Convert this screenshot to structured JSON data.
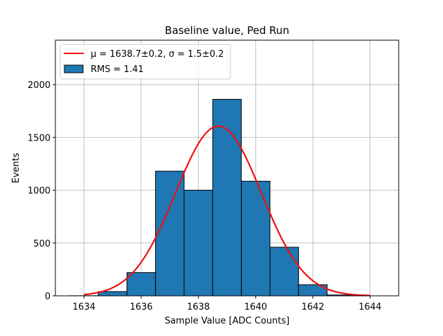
{
  "chart_data": {
    "type": "bar",
    "title": "Baseline value, Ped Run",
    "xlabel": "Sample Value [ADC Counts]",
    "ylabel": "Events",
    "xlim": [
      1633.0,
      1645.0
    ],
    "ylim": [
      0,
      2420
    ],
    "xticks": [
      1634,
      1636,
      1638,
      1640,
      1642,
      1644
    ],
    "xtick_labels": [
      "1634",
      "1636",
      "1638",
      "1640",
      "1642",
      "1644"
    ],
    "yticks": [
      0,
      500,
      1000,
      1500,
      2000
    ],
    "ytick_labels": [
      "0",
      "500",
      "1000",
      "1500",
      "2000"
    ],
    "grid": true,
    "legend_position": "top-left",
    "bins": [
      {
        "x0": 1633.5,
        "x1": 1634.5,
        "value": 1
      },
      {
        "x0": 1634.5,
        "x1": 1635.5,
        "value": 40
      },
      {
        "x0": 1635.5,
        "x1": 1636.5,
        "value": 220
      },
      {
        "x0": 1636.5,
        "x1": 1637.5,
        "value": 1180
      },
      {
        "x0": 1637.5,
        "x1": 1638.5,
        "value": 1000
      },
      {
        "x0": 1638.5,
        "x1": 1639.5,
        "value": 1860
      },
      {
        "x0": 1639.5,
        "x1": 1640.5,
        "value": 1085
      },
      {
        "x0": 1640.5,
        "x1": 1641.5,
        "value": 460
      },
      {
        "x0": 1641.5,
        "x1": 1642.5,
        "value": 105
      },
      {
        "x0": 1642.5,
        "x1": 1643.5,
        "value": 8
      }
    ],
    "fit": {
      "mu": 1638.7,
      "sigma": 1.5,
      "amplitude": 1607,
      "x_range": [
        1634,
        1644
      ]
    },
    "legend": [
      {
        "label_prefix": "μ = 1638.7±0.2, ",
        "label_suffix": "σ = 1.5±0.2",
        "kind": "line"
      },
      {
        "label": "RMS = 1.41",
        "kind": "patch"
      }
    ],
    "colors": {
      "bar_fill": "#1f77b4",
      "bar_edge": "#000000",
      "fit_line": "#ee1111",
      "grid": "#b0b0b0"
    }
  }
}
